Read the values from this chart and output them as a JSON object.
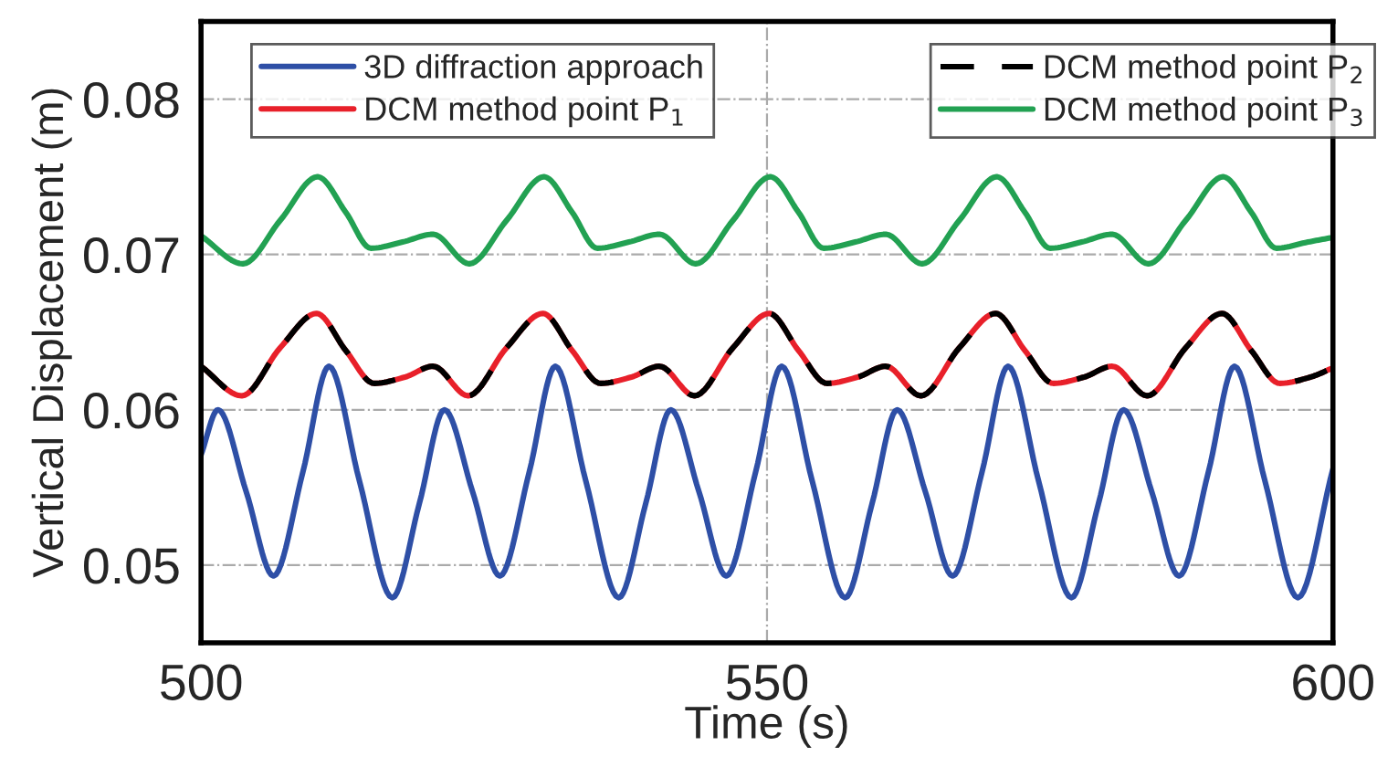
{
  "chart_data": {
    "type": "line",
    "xlabel": "Time (s)",
    "ylabel": "Vertical Displacement (m)",
    "xlim": [
      500,
      600
    ],
    "xticks": [
      500,
      550,
      600
    ],
    "ylim": [
      0.045,
      0.085
    ],
    "yticks": [
      0.05,
      0.06,
      0.07,
      0.08
    ],
    "grid": true,
    "legend": "top",
    "marker": "none",
    "series": [
      {
        "name": "3D diffraction approach",
        "color": "#2e4fa6",
        "line_style": "solid",
        "x": [
          500,
          501.5,
          504,
          506.4,
          509,
          511.3,
          514,
          516.9,
          519.3,
          521.5,
          524,
          526.4,
          529,
          531.3,
          534,
          536.9,
          539.3,
          541.5,
          544,
          546.4,
          549,
          551.3,
          554,
          556.9,
          559.3,
          561.5,
          564,
          566.4,
          569,
          571.3,
          574,
          576.9,
          579.3,
          581.5,
          584,
          586.4,
          589,
          591.3,
          594,
          596.9,
          600
        ],
        "values": [
          0.0571,
          0.06,
          0.0547,
          0.0493,
          0.056,
          0.0628,
          0.0554,
          0.0479,
          0.054,
          0.06,
          0.0547,
          0.0493,
          0.056,
          0.0628,
          0.0554,
          0.0479,
          0.054,
          0.06,
          0.0547,
          0.0493,
          0.056,
          0.0628,
          0.0554,
          0.0479,
          0.054,
          0.06,
          0.0547,
          0.0493,
          0.056,
          0.0628,
          0.0554,
          0.0479,
          0.054,
          0.06,
          0.0547,
          0.0493,
          0.056,
          0.0628,
          0.0554,
          0.0479,
          0.0562
        ]
      },
      {
        "name": "DCM method point P$_{1}$",
        "color": "#e8202a",
        "line_style": "solid",
        "x": [
          500,
          503.6,
          507,
          510.2,
          512.8,
          515.3,
          518,
          520.5,
          523.6,
          527,
          530.2,
          532.8,
          535.3,
          538,
          540.5,
          543.6,
          547,
          550.2,
          552.8,
          555.3,
          558,
          560.5,
          563.6,
          567,
          570.2,
          572.8,
          575.3,
          578,
          580.5,
          583.6,
          587,
          590.2,
          592.8,
          595.3,
          598,
          600
        ],
        "values": [
          0.0628,
          0.0609,
          0.064,
          0.0662,
          0.0638,
          0.0617,
          0.0621,
          0.0628,
          0.0609,
          0.064,
          0.0662,
          0.0638,
          0.0617,
          0.0621,
          0.0628,
          0.0609,
          0.064,
          0.0662,
          0.0638,
          0.0617,
          0.0621,
          0.0628,
          0.0609,
          0.064,
          0.0662,
          0.0638,
          0.0617,
          0.0621,
          0.0628,
          0.0609,
          0.064,
          0.0662,
          0.0638,
          0.0617,
          0.0621,
          0.0627
        ]
      },
      {
        "name": "DCM method point P$_{2}$",
        "color": "#000000",
        "line_style": "dashed",
        "x": [
          500,
          503.6,
          507,
          510.2,
          512.8,
          515.3,
          518,
          520.5,
          523.6,
          527,
          530.2,
          532.8,
          535.3,
          538,
          540.5,
          543.6,
          547,
          550.2,
          552.8,
          555.3,
          558,
          560.5,
          563.6,
          567,
          570.2,
          572.8,
          575.3,
          578,
          580.5,
          583.6,
          587,
          590.2,
          592.8,
          595.3,
          598,
          600
        ],
        "values": [
          0.0628,
          0.0609,
          0.064,
          0.0662,
          0.0638,
          0.0617,
          0.0621,
          0.0628,
          0.0609,
          0.064,
          0.0662,
          0.0638,
          0.0617,
          0.0621,
          0.0628,
          0.0609,
          0.064,
          0.0662,
          0.0638,
          0.0617,
          0.0621,
          0.0628,
          0.0609,
          0.064,
          0.0662,
          0.0638,
          0.0617,
          0.0621,
          0.0628,
          0.0609,
          0.064,
          0.0662,
          0.0638,
          0.0617,
          0.0621,
          0.0627
        ]
      },
      {
        "name": "DCM method point P$_{3}$",
        "color": "#22a152",
        "line_style": "solid",
        "x": [
          500,
          503.7,
          507,
          510.3,
          512.8,
          515,
          517.8,
          520.5,
          523.7,
          527,
          530.3,
          532.8,
          535,
          537.8,
          540.5,
          543.7,
          547,
          550.3,
          552.8,
          555,
          557.8,
          560.5,
          563.7,
          567,
          570.3,
          572.8,
          575,
          577.8,
          580.5,
          583.7,
          587,
          590.3,
          592.8,
          595,
          597.8,
          600
        ],
        "values": [
          0.0712,
          0.0694,
          0.0722,
          0.075,
          0.0727,
          0.0704,
          0.0708,
          0.0713,
          0.0694,
          0.0722,
          0.075,
          0.0727,
          0.0704,
          0.0708,
          0.0713,
          0.0694,
          0.0722,
          0.075,
          0.0727,
          0.0704,
          0.0708,
          0.0713,
          0.0694,
          0.0722,
          0.075,
          0.0727,
          0.0704,
          0.0708,
          0.0713,
          0.0694,
          0.0722,
          0.075,
          0.0727,
          0.0704,
          0.0708,
          0.0711
        ]
      }
    ]
  }
}
